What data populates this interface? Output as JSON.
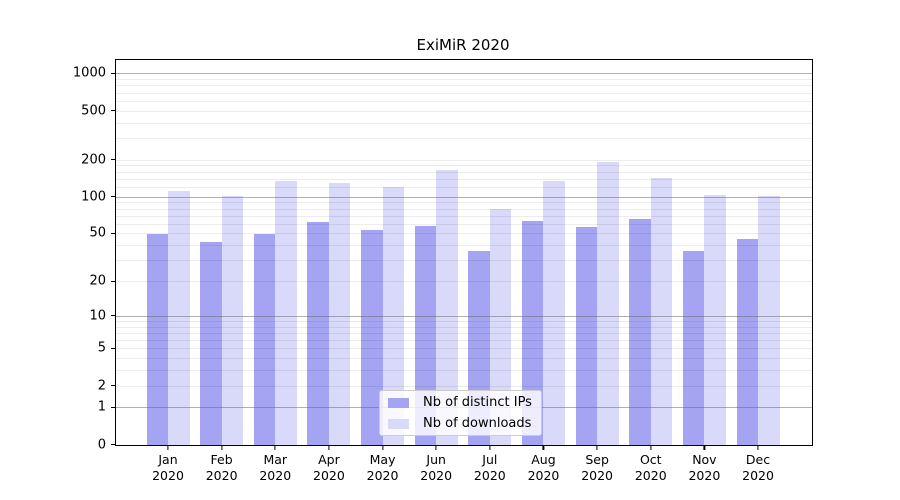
{
  "title": "ExiMiR 2020",
  "chart_data": {
    "type": "bar",
    "title": "ExiMiR 2020",
    "categories": [
      "Jan",
      "Feb",
      "Mar",
      "Apr",
      "May",
      "Jun",
      "Jul",
      "Aug",
      "Sep",
      "Oct",
      "Nov",
      "Dec"
    ],
    "x_year_line": "2020",
    "series": [
      {
        "name": "Nb of distinct IPs",
        "color": "#a4a4f2",
        "values": [
          50,
          43,
          50,
          63,
          54,
          58,
          36,
          64,
          57,
          66,
          36,
          45
        ]
      },
      {
        "name": "Nb of downloads",
        "color": "#d9d9f9",
        "values": [
          113,
          103,
          135,
          130,
          120,
          167,
          80,
          136,
          194,
          143,
          105,
          103
        ]
      }
    ],
    "y_axis": {
      "scale": "symlog_ln(1+y)",
      "tick_values": [
        0,
        1,
        2,
        5,
        10,
        20,
        50,
        100,
        200,
        500,
        1000
      ],
      "major_grid_values": [
        1,
        10,
        100,
        1000
      ],
      "minor_grid_values": [
        2,
        3,
        4,
        5,
        6,
        7,
        8,
        9,
        20,
        30,
        40,
        50,
        60,
        70,
        80,
        90,
        120,
        140,
        160,
        180,
        200,
        300,
        400,
        500,
        600,
        700,
        800,
        900
      ],
      "ylim": [
        0,
        1275
      ]
    },
    "grid": true,
    "legend_position": "bottom-center",
    "legend_items": [
      "Nb of distinct IPs",
      "Nb of downloads"
    ]
  },
  "colors": {
    "bar_distinct_ips": "#a4a4f2",
    "bar_downloads": "#d9d9f9",
    "major_grid": "#b1b1b1",
    "minor_grid": "#ebebeb",
    "axis": "#000000",
    "legend_border": "#cccccc",
    "legend_background": "rgba(255,255,255,0.8)",
    "text": "#000000"
  }
}
